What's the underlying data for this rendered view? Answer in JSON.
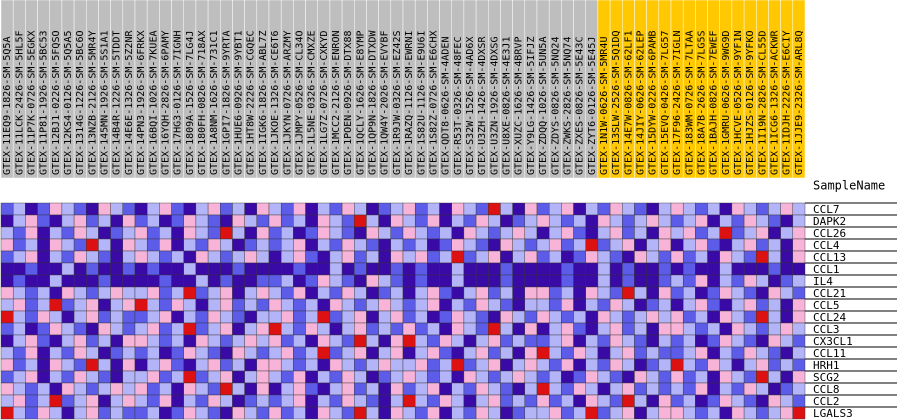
{
  "chart_data": {
    "type": "heatmap",
    "column_header": "SampleName",
    "groups": [
      {
        "color": "#bebebe",
        "samples": [
          "GTEX-11EQ9-1826-SM-5Q5A",
          "GTEX-11LCK-2426-SM-5HL5F",
          "GTEX-11P7K-0726-SM-5EGKX",
          "GTEX-11P81-1926-SM-5BC53",
          "GTEX-12BJ1-0226-SM-5FQSO",
          "GTEX-12KS4-0126-SM-5Q5A5",
          "GTEX-1314G-1226-SM-5BC6O",
          "GTEX-13NZB-2126-SM-5MR4Y",
          "GTEX-145MN-1926-SM-5S1A1",
          "GTEX-14B4R-1226-SM-5TDDT",
          "GTEX-14E6E-1326-SM-5Z2NR",
          "GTEX-14PN3-1926-SM-6FRKX",
          "GTEX-16BQI-1026-SM-7KUEA",
          "GTEX-16YQH-2826-SM-6PAMY",
          "GTEX-17HG3-0126-SM-7IGNH",
          "GTEX-1809A-1526-SM-7LG4J",
          "GTEX-180FH-0826-SM-718AX",
          "GTEX-1A8NM-1626-SM-731C1",
          "GTEX-1GPI7-1826-SM-9YRTA",
          "GTEX-1HUE6-0926-SM-9YBT1",
          "GTEX-1HT8W-2226-SM-CGQEC",
          "GTEX-1IGK6-1826-SM-ABL7Z",
          "GTEX-1JKOE-1326-SM-CE6T6",
          "GTEX-1JKYN-0726-SM-ARZMY",
          "GTEX-1JMPY-0526-SM-CL34O",
          "GTEX-1L5NE-0326-SM-CMXZE",
          "GTEX-1LG7Z-0726-SM-CXKYD",
          "GTEX-1MCC2-2126-SM-ENRON",
          "GTEX-1POEN-0926-SM-DTX88",
          "GTEX-1QCLY-1626-SM-E8YMP",
          "GTEX-1QP9N-1826-SM-DTXDW",
          "GTEX-1QW4Y-2026-SM-EVYBF",
          "GTEX-1R9JW-0326-SM-EZ42S",
          "GTEX-1RAZQ-1126-SM-EWRNI",
          "GTEX-1S82U-1126-SM-E9U6I",
          "GTEX-1S82Z-0726-SM-E6CHX",
          "GTEX-QDT8-0626-SM-4ADEN",
          "GTEX-R53T-0326-SM-48FEC",
          "GTEX-S32W-1526-SM-4AD6X",
          "GTEX-U3ZH-1426-SM-4DXSR",
          "GTEX-U3ZN-1926-SM-4DXSG",
          "GTEX-U8XE-0826-SM-4E3J1",
          "GTEX-XUZC-1626-SM-4BRVP",
          "GTEX-Y9LG-1426-SM-5IFJZ",
          "GTEX-ZDQQ-1026-SM-5UN5A",
          "GTEX-ZDYS-0826-SM-5NQ24",
          "GTEX-ZWKS-2826-SM-5NQ74",
          "GTEX-ZXES-0826-SM-5E43C",
          "GTEX-ZYT6-0126-SM-5E45J"
        ]
      },
      {
        "color": "#ffc800",
        "samples": [
          "GTEX-1N1W-0626-SM-5MR4U",
          "GTEX-13SLW-2526-SM-5Q1DQ",
          "GTEX-14E7W-0826-SM-62LF1",
          "GTEX-14JIY-0626-SM-62LEP",
          "GTEX-15DYW-0226-SM-6PAMB",
          "GTEX-15EVQ-0426-SM-7LG57",
          "GTEX-17F96-2426-SM-7IGLN",
          "GTEX-183WM-0726-SM-7LTAA",
          "GTEX-18A7B-2626-SM-7LG5S",
          "GTEX-1BAJH-0826-SM-7EWEF",
          "GTEX-1GMRU-0626-SM-9WG9D",
          "GTEX-1HCVE-0526-SM-9YF1N",
          "GTEX-1HJZS-0126-SM-9YFKO",
          "GTEX-1I19N-2826-SM-CL55D",
          "GTEX-1ICG6-1326-SM-ACKWR",
          "GTEX-1IDJH-2226-SM-E6CIY",
          "GTEX-1JJE9-2326-SM-ARL8Q"
        ]
      }
    ],
    "rows": [
      "CCL7",
      "DAPK2",
      "CCL26",
      "CCL4",
      "CCL13",
      "CCL1",
      "IL4",
      "CCL21",
      "CCL5",
      "CCL24",
      "CCL3",
      "CX3CL1",
      "CCL11",
      "HRH1",
      "SCG2",
      "CCL8",
      "CCL2",
      "LGALS3"
    ],
    "vlim": [
      -2,
      2
    ],
    "colors": [
      "#3a0aa6",
      "#5c5ce8",
      "#b4b4f8",
      "#f7b4d8",
      "#dd1111"
    ],
    "values": [
      [
        -1,
        0,
        -2,
        -1,
        1,
        0,
        -1,
        -2,
        1,
        0,
        -1,
        -2,
        0,
        1,
        -1,
        -2,
        0,
        1,
        -1,
        0,
        -2,
        1,
        0,
        -1,
        1,
        -2,
        0,
        -1,
        1,
        0,
        -2,
        -1,
        0,
        1,
        -1,
        0,
        -2,
        1,
        0,
        -1,
        2,
        0,
        -2,
        1,
        -1,
        0,
        1,
        -2,
        0,
        -1,
        1,
        0,
        -1,
        -2,
        0,
        1,
        0,
        -1,
        0,
        -2,
        1,
        0,
        -1,
        0,
        1,
        0
      ],
      [
        -2,
        0,
        1,
        -1,
        -2,
        0,
        1,
        -1,
        0,
        -2,
        1,
        -1,
        0,
        -2,
        -1,
        1,
        0,
        -1,
        -2,
        1,
        0,
        -1,
        1,
        -1,
        0,
        -2,
        1,
        0,
        -1,
        2,
        0,
        -2,
        1,
        0,
        -1,
        1,
        -2,
        0,
        -1,
        1,
        0,
        -2,
        -1,
        0,
        1,
        0,
        -1,
        0,
        -2,
        1,
        0,
        -1,
        0,
        1,
        0,
        -1,
        0,
        1,
        -2,
        0,
        -1,
        1,
        0,
        -1,
        -2,
        0
      ],
      [
        0,
        -1,
        1,
        -2,
        0,
        -1,
        1,
        0,
        -2,
        -1,
        0,
        1,
        -1,
        0,
        -2,
        1,
        0,
        -1,
        2,
        0,
        -2,
        1,
        -1,
        0,
        -2,
        -1,
        1,
        0,
        -1,
        -2,
        1,
        0,
        -1,
        1,
        0,
        -1,
        0,
        -2,
        1,
        0,
        -1,
        0,
        1,
        0,
        -2,
        0,
        1,
        -1,
        -2,
        0,
        1,
        -1,
        0,
        -2,
        1,
        0,
        1,
        -1,
        0,
        2,
        -1,
        0,
        1,
        -2,
        0,
        1
      ],
      [
        1,
        -1,
        0,
        -2,
        1,
        0,
        -1,
        2,
        0,
        -2,
        1,
        0,
        -1,
        1,
        -2,
        0,
        -1,
        1,
        0,
        -2,
        -1,
        0,
        -1,
        0,
        1,
        -2,
        0,
        -1,
        1,
        0,
        -1,
        -2,
        0,
        -1,
        0,
        -2,
        -1,
        1,
        0,
        -1,
        -2,
        1,
        0,
        -1,
        0,
        1,
        -1,
        0,
        2,
        -1,
        0,
        1,
        -2,
        0,
        1,
        -2,
        0,
        1,
        -1,
        -2,
        0,
        1,
        -1,
        0,
        -2,
        1
      ],
      [
        -1,
        0,
        1,
        -2,
        0,
        -1,
        1,
        0,
        -1,
        -2,
        0,
        1,
        0,
        -1,
        0,
        -2,
        1,
        0,
        -1,
        0,
        1,
        0,
        -2,
        0,
        1,
        -1,
        -2,
        0,
        1,
        -1,
        0,
        -2,
        1,
        0,
        1,
        -1,
        0,
        2,
        -1,
        0,
        1,
        -2,
        0,
        1,
        -1,
        0,
        -2,
        -1,
        1,
        0,
        -1,
        -2,
        1,
        0,
        -1,
        1,
        -1,
        0,
        -2,
        1,
        0,
        -1,
        2,
        0,
        -2,
        1
      ],
      [
        -2,
        -2,
        -1,
        -2,
        -2,
        0,
        -2,
        -1,
        -2,
        -2,
        -1,
        -2,
        -1,
        -2,
        -2,
        0,
        -2,
        -2,
        -2,
        -1,
        -2,
        -2,
        -2,
        -2,
        -1,
        -2,
        -2,
        0,
        -2,
        -1,
        -2,
        -2,
        -1,
        -2,
        -1,
        -2,
        -2,
        0,
        -2,
        -2,
        -2,
        -1,
        -2,
        -2,
        -2,
        -2,
        -1,
        -2,
        -2,
        0,
        -2,
        -1,
        -2,
        -2,
        -1,
        -2,
        -1,
        -2,
        -2,
        0,
        -2,
        -2,
        -2,
        -1,
        -2,
        -2
      ],
      [
        -2,
        -1,
        -2,
        -2,
        0,
        -2,
        -2,
        -2,
        -1,
        -2,
        -2,
        -2,
        -2,
        -1,
        -2,
        -2,
        0,
        -2,
        -1,
        -2,
        -2,
        -1,
        -1,
        0,
        -2,
        -1,
        1,
        0,
        -1,
        -2,
        1,
        0,
        -1,
        -2,
        -1,
        -2,
        -2,
        0,
        -2,
        -2,
        -2,
        -1,
        -2,
        -2,
        -2,
        -2,
        -1,
        -2,
        -2,
        0,
        -2,
        -1,
        -2,
        -2,
        -1,
        0,
        -1,
        1,
        -2,
        0,
        -1,
        1,
        0,
        -2,
        -1,
        0
      ],
      [
        1,
        0,
        -1,
        0,
        -2,
        1,
        0,
        -1,
        0,
        1,
        0,
        0,
        1,
        -1,
        0,
        2,
        -1,
        0,
        1,
        -2,
        0,
        1,
        0,
        -1,
        1,
        -2,
        0,
        -1,
        1,
        0,
        -2,
        -1,
        0,
        -2,
        0,
        1,
        -1,
        -2,
        0,
        1,
        -1,
        0,
        -2,
        1,
        1,
        -1,
        0,
        -2,
        1,
        0,
        -1,
        2,
        0,
        -2,
        1,
        -1,
        0,
        -2,
        -1,
        1,
        0,
        -1,
        -2,
        1,
        0,
        -1
      ],
      [
        0,
        1,
        -1,
        0,
        2,
        -1,
        0,
        1,
        -2,
        0,
        1,
        2,
        0,
        -1,
        1,
        0,
        -2,
        0,
        1,
        -1,
        0,
        -1,
        1,
        0,
        -1,
        0,
        -2,
        1,
        0,
        -1,
        0,
        1,
        0,
        -1,
        0,
        1,
        -2,
        0,
        -1,
        1,
        0,
        -1,
        -2,
        0,
        0,
        -1,
        1,
        -2,
        0,
        -1,
        1,
        0,
        -2,
        -1,
        0,
        -2,
        0,
        1,
        -1,
        -2,
        0,
        1,
        -1,
        0,
        -2,
        1
      ],
      [
        2,
        0,
        -1,
        1,
        0,
        -2,
        0,
        1,
        -1,
        0,
        -1,
        -1,
        0,
        1,
        -2,
        0,
        -1,
        1,
        0,
        -1,
        -2,
        0,
        0,
        1,
        -1,
        0,
        2,
        -1,
        0,
        1,
        -2,
        0,
        1,
        -1,
        0,
        -2,
        -1,
        1,
        0,
        -1,
        -2,
        1,
        0,
        -1,
        1,
        0,
        -1,
        0,
        -2,
        1,
        0,
        -1,
        0,
        1,
        0,
        1,
        -1,
        0,
        -2,
        1,
        0,
        -1,
        2,
        0,
        -2,
        1
      ],
      [
        -1,
        0,
        -2,
        -1,
        1,
        0,
        -1,
        -2,
        1,
        0,
        -1,
        0,
        1,
        -1,
        0,
        2,
        -1,
        0,
        1,
        -2,
        0,
        1,
        2,
        0,
        -1,
        1,
        0,
        -2,
        0,
        1,
        -1,
        0,
        -1,
        1,
        -1,
        0,
        -2,
        1,
        0,
        -1,
        2,
        0,
        -2,
        1,
        -2,
        0,
        1,
        -1,
        -2,
        0,
        1,
        -1,
        0,
        -2,
        1,
        1,
        0,
        -1,
        0,
        -2,
        1,
        0,
        -1,
        0,
        1,
        0
      ],
      [
        -2,
        0,
        1,
        -1,
        -2,
        0,
        1,
        -1,
        0,
        -2,
        1,
        1,
        0,
        -1,
        0,
        -2,
        1,
        0,
        -1,
        0,
        1,
        0,
        1,
        -1,
        0,
        -2,
        1,
        0,
        -1,
        2,
        0,
        -2,
        1,
        2,
        0,
        -1,
        1,
        0,
        -2,
        0,
        1,
        -1,
        0,
        -1,
        -1,
        0,
        1,
        -2,
        0,
        -1,
        1,
        0,
        -1,
        -2,
        0,
        -1,
        0,
        -2,
        -1,
        1,
        0,
        -1,
        -2,
        1,
        0,
        -1
      ],
      [
        0,
        -1,
        1,
        -2,
        0,
        -1,
        1,
        0,
        -2,
        -1,
        0,
        -1,
        0,
        -2,
        -1,
        1,
        0,
        -1,
        -2,
        1,
        0,
        -1,
        0,
        1,
        -1,
        0,
        2,
        -1,
        0,
        1,
        -2,
        0,
        1,
        -2,
        0,
        1,
        -1,
        -2,
        0,
        1,
        -1,
        0,
        -2,
        1,
        2,
        0,
        -1,
        1,
        0,
        -2,
        0,
        1,
        -1,
        0,
        -1,
        -1,
        0,
        1,
        -2,
        0,
        -1,
        1,
        0,
        -1,
        -2,
        0
      ],
      [
        1,
        -1,
        0,
        -2,
        1,
        0,
        -1,
        2,
        0,
        -2,
        1,
        -2,
        0,
        1,
        -1,
        -2,
        0,
        1,
        -1,
        0,
        -2,
        1,
        1,
        0,
        -1,
        0,
        -2,
        1,
        0,
        -1,
        0,
        1,
        0,
        0,
        1,
        -1,
        0,
        2,
        -1,
        0,
        1,
        -2,
        0,
        1,
        0,
        -1,
        1,
        -2,
        0,
        -1,
        1,
        0,
        -2,
        -1,
        0,
        2,
        0,
        -1,
        1,
        0,
        -2,
        0,
        1,
        -1,
        0,
        -1
      ],
      [
        -1,
        0,
        1,
        -2,
        0,
        -1,
        1,
        0,
        -1,
        -2,
        0,
        0,
        1,
        -1,
        0,
        2,
        -1,
        0,
        1,
        -2,
        0,
        1,
        0,
        -1,
        1,
        -2,
        0,
        -1,
        1,
        0,
        -2,
        -1,
        0,
        1,
        0,
        -1,
        0,
        -2,
        1,
        0,
        -1,
        0,
        1,
        0,
        -1,
        0,
        -2,
        -1,
        1,
        0,
        -1,
        -2,
        1,
        0,
        -1,
        1,
        -1,
        0,
        -2,
        1,
        0,
        -1,
        2,
        0,
        -2,
        1
      ],
      [
        1,
        0,
        -1,
        0,
        -2,
        1,
        0,
        -1,
        0,
        1,
        0,
        1,
        -1,
        0,
        -2,
        1,
        0,
        -1,
        2,
        0,
        -2,
        1,
        -2,
        0,
        1,
        -1,
        -2,
        0,
        1,
        -1,
        0,
        -2,
        1,
        -1,
        0,
        1,
        -2,
        0,
        -1,
        1,
        0,
        -1,
        -2,
        0,
        2,
        0,
        -1,
        1,
        0,
        -2,
        0,
        1,
        -1,
        0,
        -1,
        0,
        -1,
        1,
        -2,
        0,
        -1,
        1,
        0,
        -2,
        -1,
        0
      ],
      [
        0,
        1,
        -1,
        0,
        2,
        -1,
        0,
        1,
        -2,
        0,
        1,
        0,
        -1,
        1,
        -2,
        0,
        -1,
        1,
        0,
        -2,
        -1,
        0,
        -1,
        0,
        1,
        -2,
        0,
        -1,
        1,
        0,
        -1,
        -2,
        0,
        2,
        0,
        -1,
        1,
        0,
        -2,
        0,
        1,
        -1,
        0,
        -1,
        1,
        -1,
        0,
        -2,
        1,
        0,
        -1,
        2,
        0,
        -2,
        1,
        -1,
        0,
        -2,
        -1,
        1,
        0,
        -1,
        -2,
        1,
        0,
        -1
      ],
      [
        2,
        0,
        -1,
        1,
        0,
        -2,
        0,
        1,
        -1,
        0,
        -1,
        -1,
        0,
        -2,
        -1,
        1,
        0,
        -1,
        -2,
        1,
        0,
        -1,
        1,
        -1,
        0,
        -2,
        1,
        0,
        -1,
        2,
        0,
        -2,
        1,
        0,
        -1,
        1,
        -2,
        0,
        -1,
        1,
        0,
        -2,
        -1,
        0,
        0,
        1,
        -1,
        0,
        2,
        -1,
        0,
        1,
        -2,
        0,
        1,
        1,
        0,
        -1,
        0,
        -2,
        1,
        0,
        -1,
        0,
        1,
        2
      ]
    ]
  }
}
